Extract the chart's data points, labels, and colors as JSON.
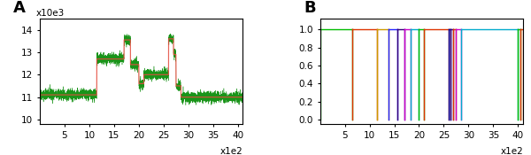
{
  "panel_a": {
    "label": "A",
    "n_points": 4100,
    "ylim": [
      9800,
      14500
    ],
    "yticks": [
      10000,
      11000,
      12000,
      13000,
      14000
    ],
    "ytick_labels": [
      "10",
      "11",
      "12",
      "13",
      "14"
    ],
    "ylabel_sci": "x10e3",
    "xticks": [
      500,
      1000,
      1500,
      2000,
      2500,
      3000,
      3500,
      4000
    ],
    "xtick_labels": [
      "5",
      "10",
      "15",
      "20",
      "25",
      "30",
      "35",
      "40"
    ],
    "xlabel_sci": "x1e2",
    "noise_color": "#008800",
    "step_color_solid": "#ff4444",
    "noise_std": 120,
    "segments": [
      {
        "start": 0,
        "end": 1150,
        "level": 11100
      },
      {
        "start": 1150,
        "end": 1700,
        "level": 12700
      },
      {
        "start": 1700,
        "end": 1830,
        "level": 13550
      },
      {
        "start": 1830,
        "end": 2000,
        "level": 12450
      },
      {
        "start": 2000,
        "end": 2100,
        "level": 11600
      },
      {
        "start": 2100,
        "end": 2600,
        "level": 12000
      },
      {
        "start": 2600,
        "end": 2700,
        "level": 13600
      },
      {
        "start": 2700,
        "end": 2750,
        "level": 12900
      },
      {
        "start": 2750,
        "end": 2850,
        "level": 11500
      },
      {
        "start": 2850,
        "end": 4100,
        "level": 11000
      }
    ]
  },
  "panel_b": {
    "label": "B",
    "ylim": [
      -0.05,
      1.12
    ],
    "yticks": [
      0.0,
      0.2,
      0.4,
      0.6,
      0.8,
      1.0
    ],
    "ytick_labels": [
      "0.0",
      "0.2",
      "0.4",
      "0.6",
      "0.8",
      "1.0"
    ],
    "xticks": [
      500,
      1000,
      1500,
      2000,
      2500,
      3000,
      3500,
      4000
    ],
    "xtick_labels": [
      "5",
      "10",
      "15",
      "20",
      "25",
      "30",
      "35",
      "40"
    ],
    "xlabel_sci": "x1e2",
    "xlim": [
      0,
      4100
    ],
    "segments": [
      {
        "start": 0,
        "end": 650,
        "color": "#00bb00"
      },
      {
        "start": 650,
        "end": 1150,
        "color": "#dd3300"
      },
      {
        "start": 1150,
        "end": 1380,
        "color": "#cc9900"
      },
      {
        "start": 1380,
        "end": 1560,
        "color": "#2222ff"
      },
      {
        "start": 1560,
        "end": 1700,
        "color": "#330077"
      },
      {
        "start": 1700,
        "end": 1830,
        "color": "#cc00cc"
      },
      {
        "start": 1830,
        "end": 2000,
        "color": "#00aacc"
      },
      {
        "start": 2000,
        "end": 2100,
        "color": "#00bb00"
      },
      {
        "start": 2100,
        "end": 2600,
        "color": "#dd3300"
      },
      {
        "start": 2600,
        "end": 2640,
        "color": "#000099"
      },
      {
        "start": 2640,
        "end": 2680,
        "color": "#330077"
      },
      {
        "start": 2680,
        "end": 2750,
        "color": "#dd3300"
      },
      {
        "start": 2750,
        "end": 2850,
        "color": "#cc00cc"
      },
      {
        "start": 2850,
        "end": 4000,
        "color": "#00aacc"
      },
      {
        "start": 4000,
        "end": 4040,
        "color": "#00bb00"
      },
      {
        "start": 4040,
        "end": 4100,
        "color": "#dd3300"
      }
    ]
  },
  "bg_color": "#ffffff",
  "font_size": 7.5,
  "label_fontsize": 13
}
